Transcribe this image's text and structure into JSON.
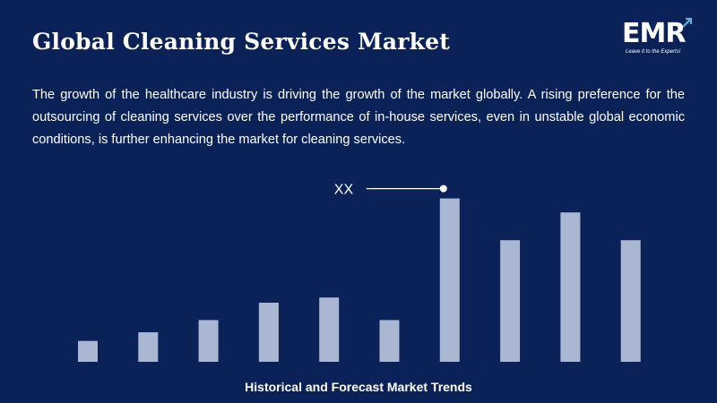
{
  "header": {
    "title": "Global Cleaning Services Market",
    "description": "The growth of the healthcare industry is driving the growth of the market globally. A rising preference for the outsourcing of cleaning services over the performance of in-house services, even in unstable global economic conditions, is further enhancing the market for cleaning services."
  },
  "logo": {
    "text": "EMR",
    "tagline": "Leave it to the Experts!"
  },
  "colors": {
    "background": "#0b2259",
    "bar": "#a9b7d2",
    "text": "#ffffff"
  },
  "chart_data": {
    "type": "bar",
    "caption": "Historical and Forecast Market Trends",
    "annotation": {
      "label": "XX",
      "bar_index": 6
    },
    "values": [
      1.2,
      1.7,
      2.4,
      3.4,
      3.7,
      2.4,
      9.4,
      7.0,
      8.6,
      7.0
    ],
    "ylim": [
      0,
      10
    ],
    "grid": false,
    "legend": "none"
  }
}
